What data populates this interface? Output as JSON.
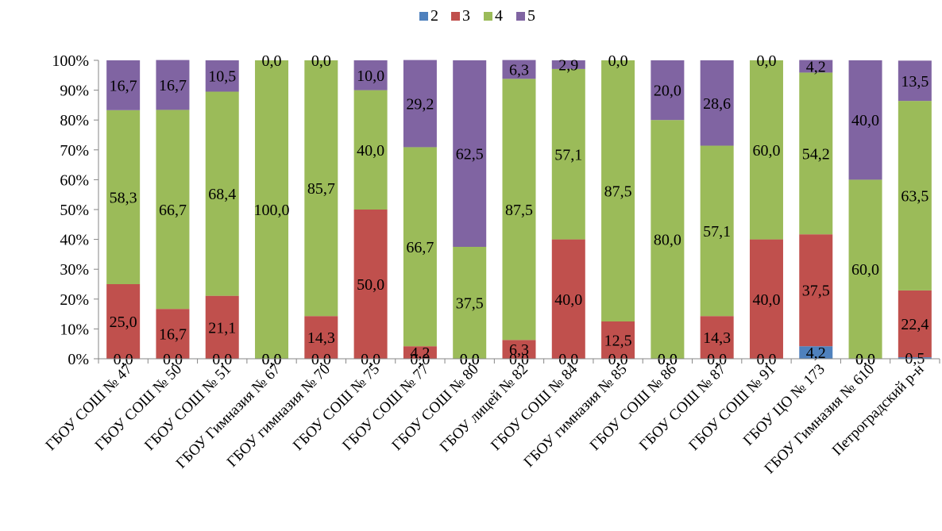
{
  "chart_data": {
    "type": "bar",
    "stacked": "percent",
    "categories": [
      "ГБОУ СОШ № 47",
      "ГБОУ СОШ № 50",
      "ГБОУ СОШ № 51",
      "ГБОУ Гимназия № 67",
      "ГБОУ гимназия № 70",
      "ГБОУ СОШ № 75",
      "ГБОУ СОШ № 77",
      "ГБОУ СОШ № 80",
      "ГБОУ лицей № 82",
      "ГБОУ СОШ № 84",
      "ГБОУ гимназия № 85",
      "ГБОУ СОШ № 86",
      "ГБОУ СОШ № 87",
      "ГБОУ СОШ № 91",
      "ГБОУ ЦО № 173",
      "ГБОУ Гимназия № 610",
      "Петроградский р-н"
    ],
    "series": [
      {
        "name": "2",
        "color": "#4F81BD",
        "values": [
          0,
          0,
          0,
          0,
          0,
          0,
          0,
          0,
          0,
          0,
          0,
          0,
          0,
          0,
          4.2,
          0,
          0.5
        ],
        "labels": [
          "0,0",
          "0,0",
          "0,0",
          "0,0",
          "0,0",
          "0,0",
          "0,0",
          "0,0",
          "0,0",
          "0,0",
          "0,0",
          "0,0",
          "0,0",
          "0,0",
          "4,2",
          "0,0",
          "0,5"
        ]
      },
      {
        "name": "3",
        "color": "#C0504D",
        "values": [
          25.0,
          16.7,
          21.1,
          0,
          14.3,
          50.0,
          4.2,
          0,
          6.3,
          40.0,
          12.5,
          0,
          14.3,
          40.0,
          37.5,
          0,
          22.4
        ],
        "labels": [
          "25,0",
          "16,7",
          "21,1",
          "0,0",
          "14,3",
          "50,0",
          "4,2",
          "0,0",
          "6,3",
          "40,0",
          "12,5",
          "0,0",
          "14,3",
          "40,0",
          "37,5",
          "0,0",
          "22,4"
        ]
      },
      {
        "name": "4",
        "color": "#9BBB59",
        "values": [
          58.3,
          66.7,
          68.4,
          100.0,
          85.7,
          40.0,
          66.7,
          37.5,
          87.5,
          57.1,
          87.5,
          80.0,
          57.1,
          60.0,
          54.2,
          60.0,
          63.5
        ],
        "labels": [
          "58,3",
          "66,7",
          "68,4",
          "100,0",
          "85,7",
          "40,0",
          "66,7",
          "37,5",
          "87,5",
          "57,1",
          "87,5",
          "80,0",
          "57,1",
          "60,0",
          "54,2",
          "60,0",
          "63,5"
        ]
      },
      {
        "name": "5",
        "color": "#8064A2",
        "values": [
          16.7,
          16.7,
          10.5,
          0,
          0,
          10.0,
          29.2,
          62.5,
          6.3,
          2.9,
          0,
          20.0,
          28.6,
          0,
          4.2,
          40.0,
          13.5
        ],
        "labels": [
          "16,7",
          "16,7",
          "10,5",
          "0,0",
          "0,0",
          "10,0",
          "29,2",
          "62,5",
          "6,3",
          "2,9",
          "0,0",
          "20,0",
          "28,6",
          "0,0",
          "4,2",
          "40,0",
          "13,5"
        ]
      }
    ],
    "y_ticks": [
      "0%",
      "10%",
      "20%",
      "30%",
      "40%",
      "50%",
      "60%",
      "70%",
      "80%",
      "90%",
      "100%"
    ],
    "ylim": [
      0,
      100
    ],
    "legend": {
      "position": "top",
      "entries": [
        "2",
        "3",
        "4",
        "5"
      ]
    },
    "grid": false,
    "title": "",
    "xlabel": "",
    "ylabel": ""
  }
}
